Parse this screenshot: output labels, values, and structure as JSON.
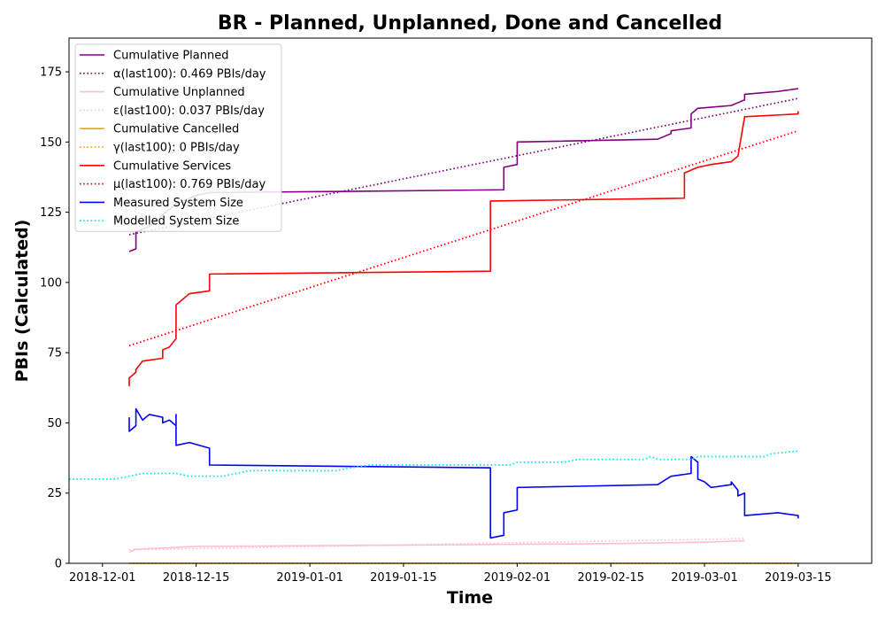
{
  "chart_data": {
    "type": "line",
    "title": "BR - Planned, Unplanned, Done  and Cancelled",
    "xlabel": "Time",
    "ylabel": "PBIs (Calculated)",
    "xlim": [
      "2018-11-26",
      "2019-03-26"
    ],
    "ylim": [
      0,
      187
    ],
    "x_ticks": [
      "2018-12-01",
      "2018-12-15",
      "2019-01-01",
      "2019-01-15",
      "2019-02-01",
      "2019-02-15",
      "2019-03-01",
      "2019-03-15"
    ],
    "y_ticks": [
      0,
      25,
      50,
      75,
      100,
      125,
      150,
      175
    ],
    "grid": false,
    "legend_position": "top-left",
    "series": [
      {
        "name": "Cumulative Planned",
        "color": "#800080",
        "style": "solid",
        "points": [
          [
            "2018-12-05",
            111
          ],
          [
            "2018-12-06",
            112
          ],
          [
            "2018-12-06",
            118
          ],
          [
            "2018-12-08",
            120
          ],
          [
            "2018-12-10",
            124
          ],
          [
            "2018-12-12",
            128
          ],
          [
            "2018-12-15",
            131
          ],
          [
            "2018-12-17",
            132
          ],
          [
            "2019-01-10",
            132.5
          ],
          [
            "2019-01-30",
            133
          ],
          [
            "2019-01-30",
            141
          ],
          [
            "2019-02-01",
            142
          ],
          [
            "2019-02-01",
            150
          ],
          [
            "2019-02-22",
            151
          ],
          [
            "2019-02-24",
            153
          ],
          [
            "2019-02-24",
            154
          ],
          [
            "2019-02-27",
            155
          ],
          [
            "2019-02-27",
            160
          ],
          [
            "2019-02-28",
            162
          ],
          [
            "2019-03-05",
            163
          ],
          [
            "2019-03-06",
            164
          ],
          [
            "2019-03-07",
            165
          ],
          [
            "2019-03-07",
            167
          ],
          [
            "2019-03-12",
            168
          ],
          [
            "2019-03-15",
            169
          ]
        ]
      },
      {
        "name": "α(last100): 0.469 PBIs/day",
        "color": "#800080",
        "style": "dotted",
        "points": [
          [
            "2018-12-05",
            117
          ],
          [
            "2019-03-15",
            165.5
          ]
        ]
      },
      {
        "name": "Cumulative Unplanned",
        "color": "#ffc0cb",
        "style": "solid",
        "points": [
          [
            "2018-12-05",
            4
          ],
          [
            "2018-12-06",
            5
          ],
          [
            "2018-12-15",
            6
          ],
          [
            "2019-01-15",
            6.5
          ],
          [
            "2019-02-15",
            7
          ],
          [
            "2019-03-01",
            7.5
          ],
          [
            "2019-03-07",
            8
          ]
        ]
      },
      {
        "name": "ε(last100): 0.037 PBIs/day",
        "color": "#ffc0cb",
        "style": "dotted",
        "points": [
          [
            "2018-12-05",
            4.8
          ],
          [
            "2019-03-07",
            8.8
          ]
        ]
      },
      {
        "name": "Cumulative Cancelled",
        "color": "#ffa500",
        "style": "solid",
        "points": [
          [
            "2018-12-05",
            0
          ],
          [
            "2019-03-15",
            0
          ]
        ]
      },
      {
        "name": "γ(last100): 0 PBIs/day",
        "color": "#ffa500",
        "style": "dotted",
        "points": [
          [
            "2018-12-05",
            0
          ],
          [
            "2019-03-15",
            0
          ]
        ]
      },
      {
        "name": "Cumulative Services",
        "color": "#ff0000",
        "style": "solid",
        "points": [
          [
            "2018-12-05",
            63
          ],
          [
            "2018-12-05",
            66
          ],
          [
            "2018-12-06",
            68
          ],
          [
            "2018-12-06",
            69
          ],
          [
            "2018-12-07",
            72
          ],
          [
            "2018-12-10",
            73
          ],
          [
            "2018-12-10",
            76
          ],
          [
            "2018-12-11",
            77
          ],
          [
            "2018-12-12",
            80
          ],
          [
            "2018-12-12",
            92
          ],
          [
            "2018-12-13",
            94
          ],
          [
            "2018-12-14",
            96
          ],
          [
            "2018-12-17",
            97
          ],
          [
            "2018-12-17",
            103
          ],
          [
            "2019-01-28",
            104
          ],
          [
            "2019-01-28",
            129
          ],
          [
            "2019-02-26",
            130
          ],
          [
            "2019-02-26",
            139
          ],
          [
            "2019-02-28",
            141
          ],
          [
            "2019-03-02",
            142
          ],
          [
            "2019-03-05",
            143
          ],
          [
            "2019-03-06",
            145
          ],
          [
            "2019-03-07",
            159
          ],
          [
            "2019-03-15",
            160
          ],
          [
            "2019-03-15",
            161
          ]
        ]
      },
      {
        "name": "μ(last100): 0.769 PBIs/day",
        "color": "#ff0000",
        "style": "dotted",
        "points": [
          [
            "2018-12-05",
            77.5
          ],
          [
            "2019-03-15",
            154
          ]
        ]
      },
      {
        "name": "Measured System Size",
        "color": "#0000ff",
        "style": "solid",
        "points": [
          [
            "2018-12-05",
            52
          ],
          [
            "2018-12-05",
            47
          ],
          [
            "2018-12-06",
            49
          ],
          [
            "2018-12-06",
            55
          ],
          [
            "2018-12-07",
            51
          ],
          [
            "2018-12-08",
            53
          ],
          [
            "2018-12-10",
            52
          ],
          [
            "2018-12-10",
            50
          ],
          [
            "2018-12-11",
            51
          ],
          [
            "2018-12-12",
            49
          ],
          [
            "2018-12-12",
            53
          ],
          [
            "2018-12-12",
            42
          ],
          [
            "2018-12-14",
            43
          ],
          [
            "2018-12-17",
            41
          ],
          [
            "2018-12-17",
            35
          ],
          [
            "2019-01-28",
            34
          ],
          [
            "2019-01-28",
            9
          ],
          [
            "2019-01-30",
            10
          ],
          [
            "2019-01-30",
            18
          ],
          [
            "2019-02-01",
            19
          ],
          [
            "2019-02-01",
            27
          ],
          [
            "2019-02-22",
            28
          ],
          [
            "2019-02-24",
            31
          ],
          [
            "2019-02-27",
            32
          ],
          [
            "2019-02-27",
            38
          ],
          [
            "2019-02-28",
            36
          ],
          [
            "2019-02-28",
            30
          ],
          [
            "2019-03-01",
            29
          ],
          [
            "2019-03-02",
            27
          ],
          [
            "2019-03-05",
            28
          ],
          [
            "2019-03-05",
            29
          ],
          [
            "2019-03-06",
            26
          ],
          [
            "2019-03-06",
            24
          ],
          [
            "2019-03-07",
            25
          ],
          [
            "2019-03-07",
            17
          ],
          [
            "2019-03-12",
            18
          ],
          [
            "2019-03-15",
            17
          ],
          [
            "2019-03-15",
            16
          ]
        ]
      },
      {
        "name": "Modelled System Size",
        "color": "#00e5ee",
        "style": "dotted",
        "points": [
          [
            "2018-11-26",
            30
          ],
          [
            "2018-12-03",
            30
          ],
          [
            "2018-12-05",
            31
          ],
          [
            "2018-12-07",
            32
          ],
          [
            "2018-12-12",
            32
          ],
          [
            "2018-12-14",
            31
          ],
          [
            "2018-12-19",
            31
          ],
          [
            "2018-12-21",
            32
          ],
          [
            "2018-12-23",
            33
          ],
          [
            "2019-01-05",
            33
          ],
          [
            "2019-01-07",
            34
          ],
          [
            "2019-01-10",
            35
          ],
          [
            "2019-01-31",
            35
          ],
          [
            "2019-02-01",
            36
          ],
          [
            "2019-02-08",
            36
          ],
          [
            "2019-02-10",
            37
          ],
          [
            "2019-02-20",
            37
          ],
          [
            "2019-02-21",
            38
          ],
          [
            "2019-02-22",
            37
          ],
          [
            "2019-02-27",
            37
          ],
          [
            "2019-02-28",
            38
          ],
          [
            "2019-03-10",
            38
          ],
          [
            "2019-03-11",
            39
          ],
          [
            "2019-03-15",
            40
          ]
        ]
      }
    ]
  }
}
